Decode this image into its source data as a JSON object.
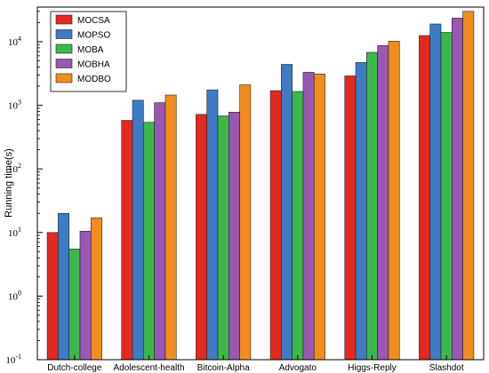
{
  "chart_data": {
    "type": "bar",
    "title": "",
    "xlabel": "",
    "ylabel": "Running time(s)",
    "yscale": "log",
    "ylim": [
      0.1,
      35000
    ],
    "yticks": [
      {
        "value": 0.1,
        "base": "10",
        "exp": "-1"
      },
      {
        "value": 1,
        "base": "10",
        "exp": "0"
      },
      {
        "value": 10,
        "base": "10",
        "exp": "1"
      },
      {
        "value": 100,
        "base": "10",
        "exp": "2"
      },
      {
        "value": 1000,
        "base": "10",
        "exp": "3"
      },
      {
        "value": 10000,
        "base": "10",
        "exp": "4"
      }
    ],
    "categories": [
      "Dutch-college",
      "Adolescent-health",
      "Bitcoin-Alpha",
      "Advogato",
      "Higgs-Reply",
      "Slashdot"
    ],
    "series": [
      {
        "name": "MOCSA",
        "color": "#e3281e",
        "values": [
          10,
          580,
          720,
          1700,
          2900,
          12500
        ]
      },
      {
        "name": "MOPSO",
        "color": "#3d7bc4",
        "values": [
          20,
          1200,
          1750,
          4400,
          4700,
          19000
        ]
      },
      {
        "name": "MOBA",
        "color": "#3cb84a",
        "values": [
          5.5,
          540,
          680,
          1650,
          6800,
          14000
        ]
      },
      {
        "name": "MOBHA",
        "color": "#9a57b3",
        "values": [
          10.5,
          1100,
          780,
          3300,
          8700,
          23500
        ]
      },
      {
        "name": "MODBO",
        "color": "#f18d1c",
        "values": [
          17,
          1450,
          2100,
          3100,
          10200,
          30000
        ]
      }
    ],
    "legend_position": "top-left",
    "grid": false
  }
}
